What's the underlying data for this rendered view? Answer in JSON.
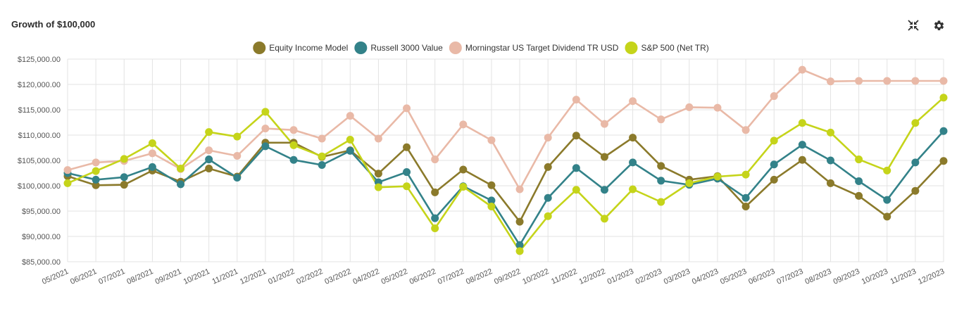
{
  "header": {
    "title": "Growth of $100,000",
    "collapse_icon": "collapse-arrows-icon",
    "settings_icon": "gear-icon"
  },
  "chart_data": {
    "type": "line",
    "title": "Growth of $100,000",
    "legend_position": "top-center",
    "grid": true,
    "ylim": [
      85000,
      125000
    ],
    "y_ticks": [
      "$125,000.00",
      "$120,000.00",
      "$115,000.00",
      "$110,000.00",
      "$105,000.00",
      "$100,000.00",
      "$95,000.00",
      "$90,000.00",
      "$85,000.00"
    ],
    "categories": [
      "05/2021",
      "06/2021",
      "07/2021",
      "08/2021",
      "09/2021",
      "10/2021",
      "11/2021",
      "12/2021",
      "01/2022",
      "02/2022",
      "03/2022",
      "04/2022",
      "05/2022",
      "06/2022",
      "07/2022",
      "08/2022",
      "09/2022",
      "10/2022",
      "11/2022",
      "12/2022",
      "01/2023",
      "02/2023",
      "03/2023",
      "04/2023",
      "05/2023",
      "06/2023",
      "07/2023",
      "08/2023",
      "09/2023",
      "10/2023",
      "11/2023",
      "12/2023"
    ],
    "series": [
      {
        "name": "Equity Income Model",
        "color": "#8b7a2b",
        "values": [
          101900,
          100100,
          100200,
          103000,
          100800,
          103400,
          101800,
          108500,
          108500,
          105700,
          107000,
          102400,
          107600,
          98700,
          103200,
          100100,
          92900,
          103700,
          109900,
          105700,
          109500,
          103900,
          101200,
          101900,
          95900,
          101200,
          105100,
          100500,
          98000,
          93900,
          99000,
          104900
        ]
      },
      {
        "name": "Russell 3000 Value",
        "color": "#338289",
        "values": [
          102500,
          101200,
          101700,
          103700,
          100300,
          105200,
          101600,
          107800,
          105100,
          104100,
          106900,
          100700,
          102700,
          93600,
          99900,
          97100,
          88300,
          97600,
          103500,
          99200,
          104600,
          101000,
          100200,
          101400,
          97600,
          104200,
          108100,
          105000,
          100900,
          97200,
          104600,
          110800
        ]
      },
      {
        "name": "Morningstar US Target Dividend TR USD",
        "color": "#e9b9a7",
        "values": [
          103100,
          104600,
          104900,
          106400,
          103300,
          107000,
          105900,
          111300,
          111000,
          109300,
          113800,
          109300,
          115300,
          105200,
          112100,
          109000,
          99300,
          109500,
          117000,
          112200,
          116700,
          113100,
          115500,
          115400,
          111000,
          117700,
          122900,
          120600,
          120700,
          120700,
          120700,
          120700
        ]
      },
      {
        "name": "S&P 500 (Net TR)",
        "color": "#c5d41a",
        "values": [
          100500,
          102900,
          105300,
          108400,
          103400,
          110600,
          109700,
          114600,
          108000,
          105800,
          109100,
          99700,
          99900,
          91600,
          99800,
          95900,
          87100,
          94000,
          99200,
          93500,
          99300,
          96800,
          100500,
          101800,
          102200,
          108900,
          112400,
          110500,
          105200,
          103000,
          112400,
          117400
        ]
      }
    ]
  }
}
